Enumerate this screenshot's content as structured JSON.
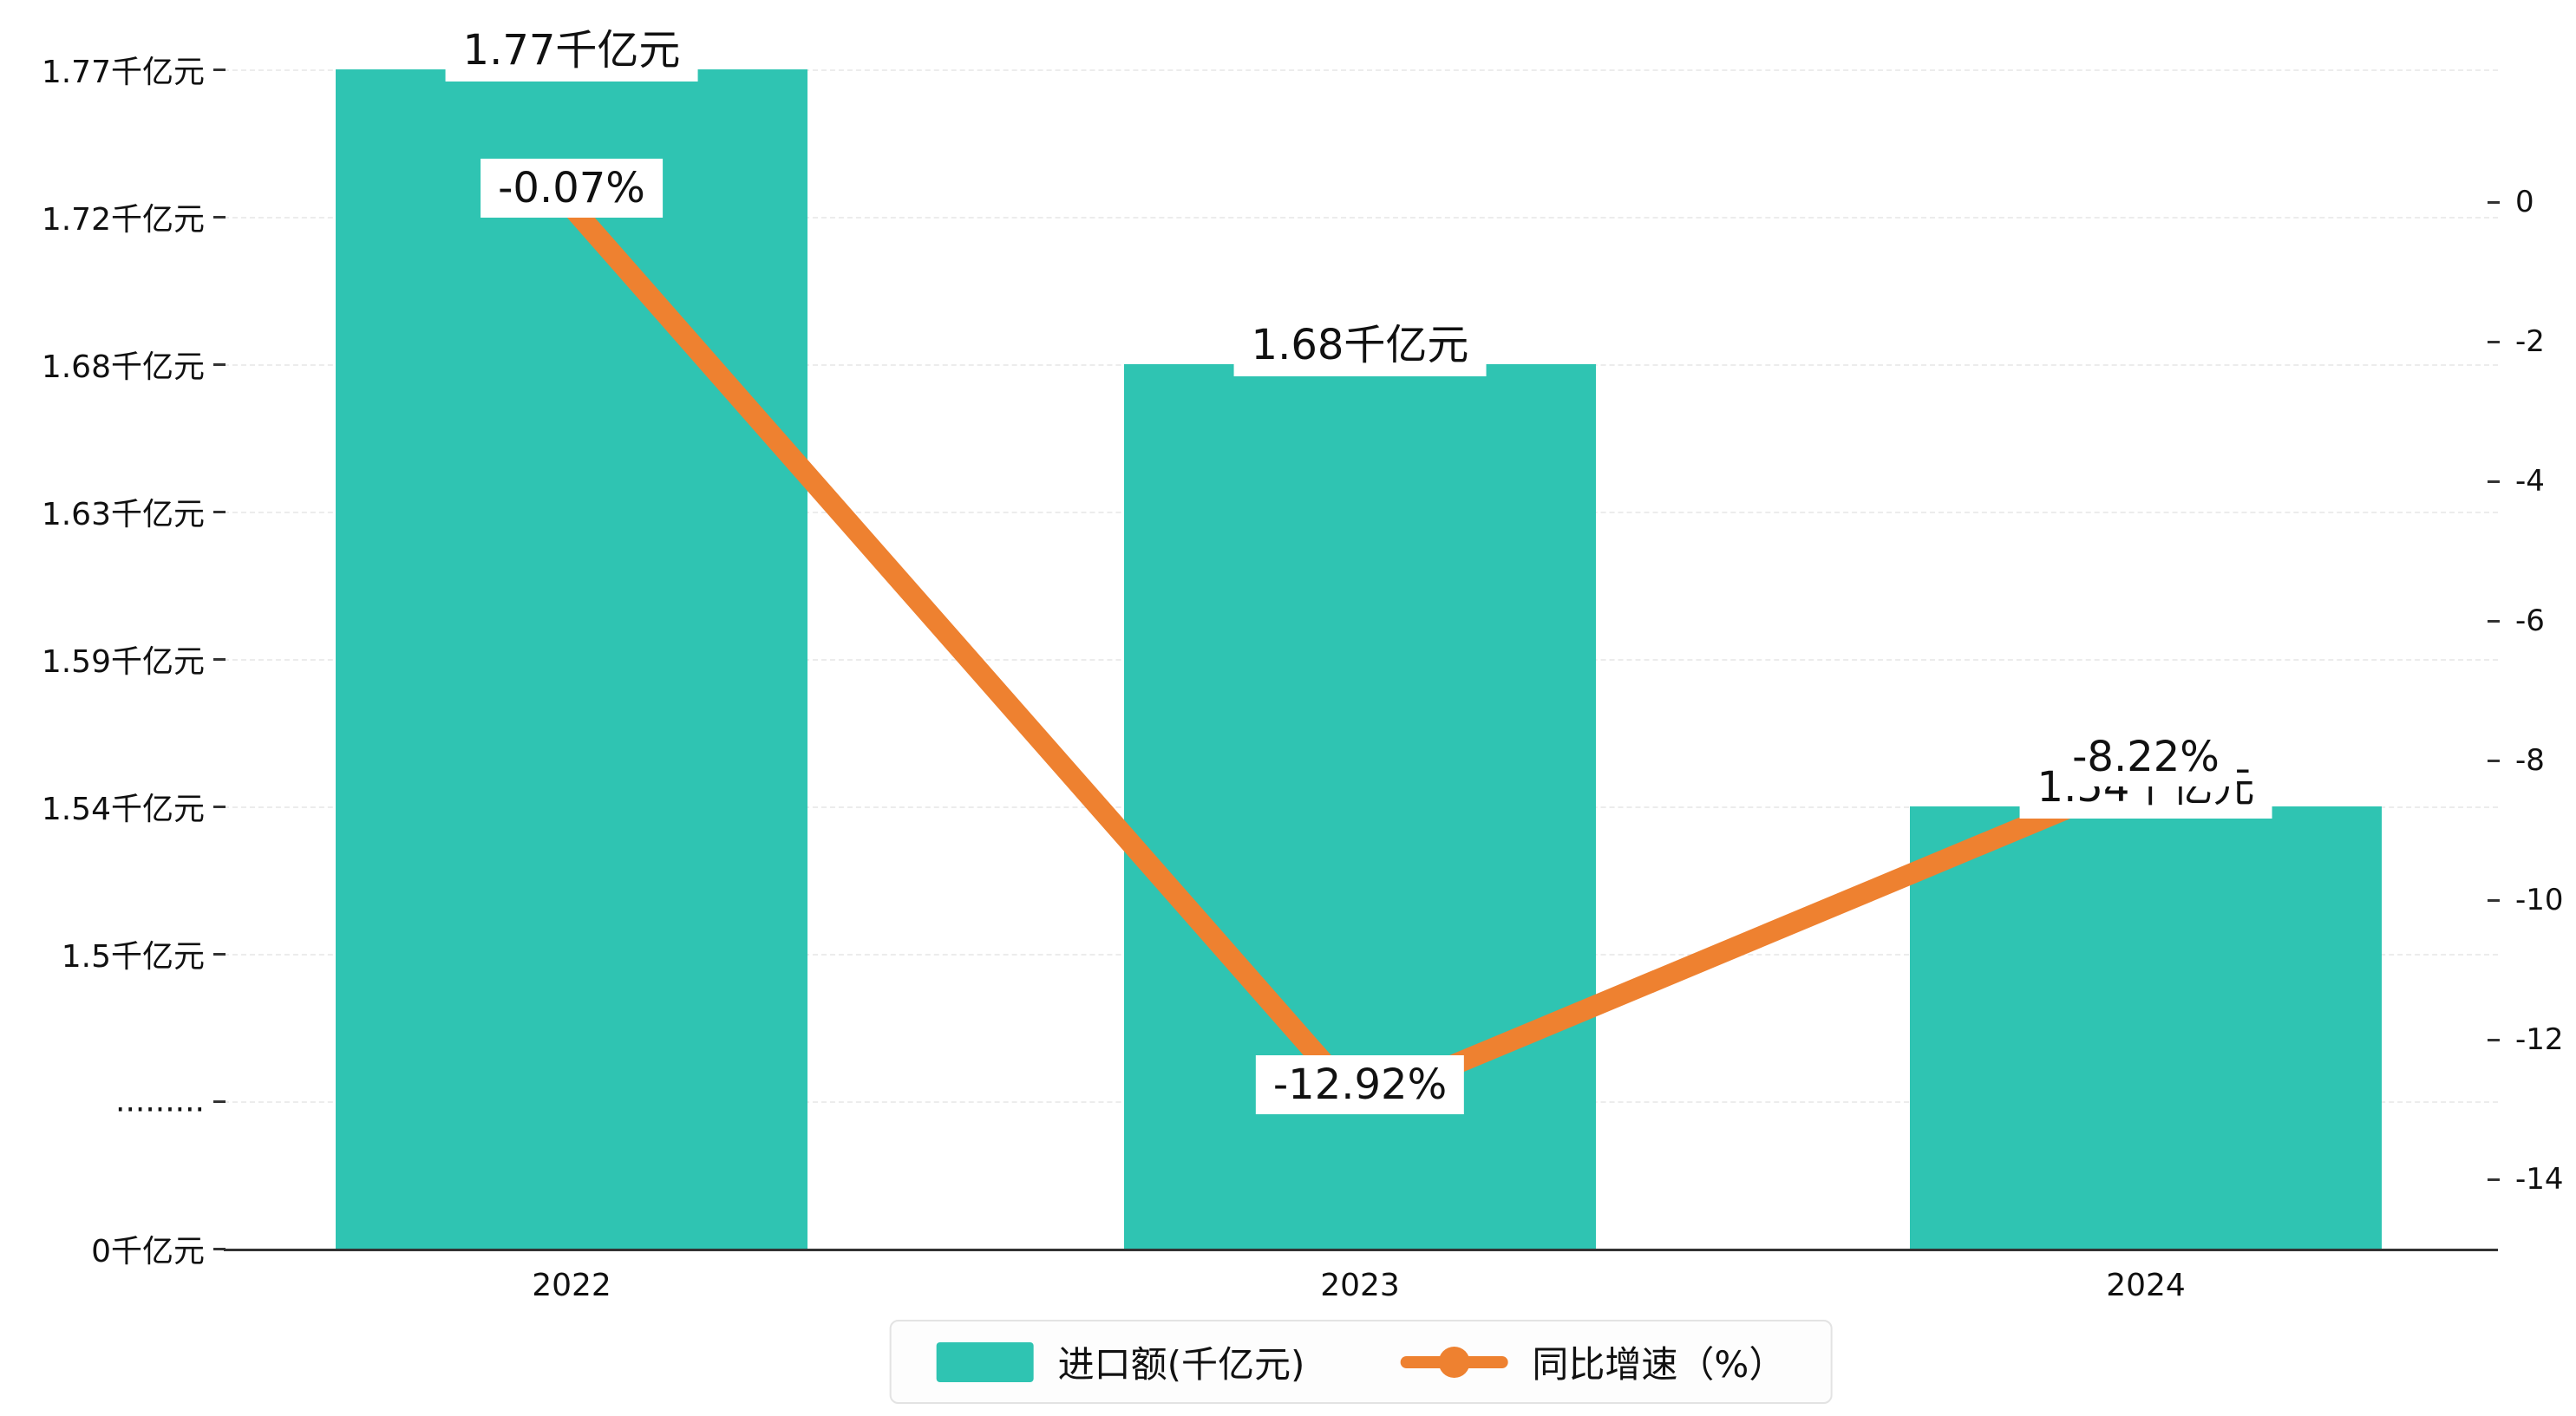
{
  "chart_data": {
    "type": "combo",
    "title": "",
    "categories": [
      "2022",
      "2023",
      "2024"
    ],
    "series": [
      {
        "name": "进口额(千亿元)",
        "type": "bar",
        "values": [
          1.77,
          1.68,
          1.54
        ],
        "labels": [
          "1.77千亿元",
          "1.68千亿元",
          "1.54千亿元"
        ],
        "color": "#2fc4b2"
      },
      {
        "name": "同比增速（%）",
        "type": "line",
        "values": [
          -0.07,
          -12.92,
          -8.22
        ],
        "labels": [
          "-0.07%",
          "-12.92%",
          "-8.22%"
        ],
        "color": "#ee8130"
      }
    ],
    "left_axis": {
      "tick_labels": [
        "1.77千亿元",
        "1.72千亿元",
        "1.68千亿元",
        "1.63千亿元",
        "1.59千亿元",
        "1.54千亿元",
        "1.5千亿元",
        ".........",
        "0千亿元"
      ],
      "broken": true
    },
    "right_axis": {
      "tick_labels": [
        "0",
        "-2",
        "-4",
        "-6",
        "-8",
        "-10",
        "-12",
        "-14"
      ],
      "unit": "%"
    },
    "legend": {
      "position": "bottom",
      "items": [
        {
          "label": "进口额(千亿元)",
          "marker": "bar",
          "color": "#2fc4b2"
        },
        {
          "label": "同比增速（%）",
          "marker": "line",
          "color": "#ee8130"
        }
      ]
    },
    "grid": true,
    "colors": {
      "bar": "#2fc4b2",
      "line": "#ee8130",
      "grid": "#ececec",
      "axis": "#333333",
      "background": "#ffffff"
    }
  }
}
